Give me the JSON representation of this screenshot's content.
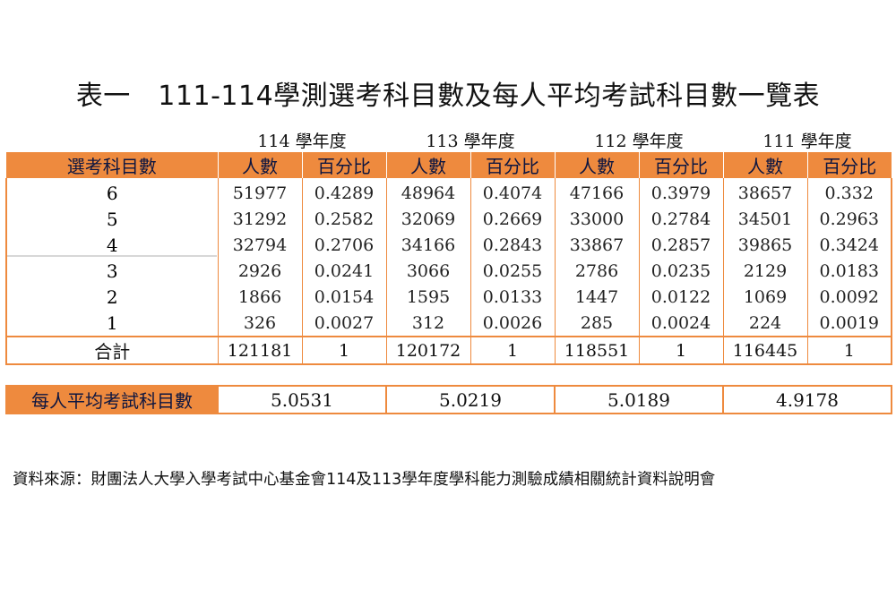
{
  "title": "表一　111-114學測選考科目數及每人平均考試科目數一覽表",
  "years": [
    "114 學年度",
    "113 學年度",
    "112 學年度",
    "111 學年度"
  ],
  "header": {
    "subject_count": "選考科目數",
    "count": "人數",
    "percent": "百分比"
  },
  "rows": [
    {
      "subjects": "6",
      "cells": [
        "51977",
        "0.4289",
        "48964",
        "0.4074",
        "47166",
        "0.3979",
        "38657",
        "0.332"
      ]
    },
    {
      "subjects": "5",
      "cells": [
        "31292",
        "0.2582",
        "32069",
        "0.2669",
        "33000",
        "0.2784",
        "34501",
        "0.2963"
      ]
    },
    {
      "subjects": "4",
      "cells": [
        "32794",
        "0.2706",
        "34166",
        "0.2843",
        "33867",
        "0.2857",
        "39865",
        "0.3424"
      ]
    },
    {
      "subjects": "3",
      "cells": [
        "2926",
        "0.0241",
        "3066",
        "0.0255",
        "2786",
        "0.0235",
        "2129",
        "0.0183"
      ]
    },
    {
      "subjects": "2",
      "cells": [
        "1866",
        "0.0154",
        "1595",
        "0.0133",
        "1447",
        "0.0122",
        "1069",
        "0.0092"
      ]
    },
    {
      "subjects": "1",
      "cells": [
        "326",
        "0.0027",
        "312",
        "0.0026",
        "285",
        "0.0024",
        "224",
        "0.0019"
      ]
    }
  ],
  "total": {
    "label": "合計",
    "cells": [
      "121181",
      "1",
      "120172",
      "1",
      "118551",
      "1",
      "116445",
      "1"
    ]
  },
  "average": {
    "label": "每人平均考試科目數",
    "values": [
      "5.0531",
      "5.0219",
      "5.0189",
      "4.9178"
    ]
  },
  "source": "資料來源：財團法人大學入學考試中心基金會114及113學年度學科能力測驗成績相關統計資料說明會",
  "colors": {
    "accent": "#ee8a3e",
    "header_text": "#0c1540"
  }
}
